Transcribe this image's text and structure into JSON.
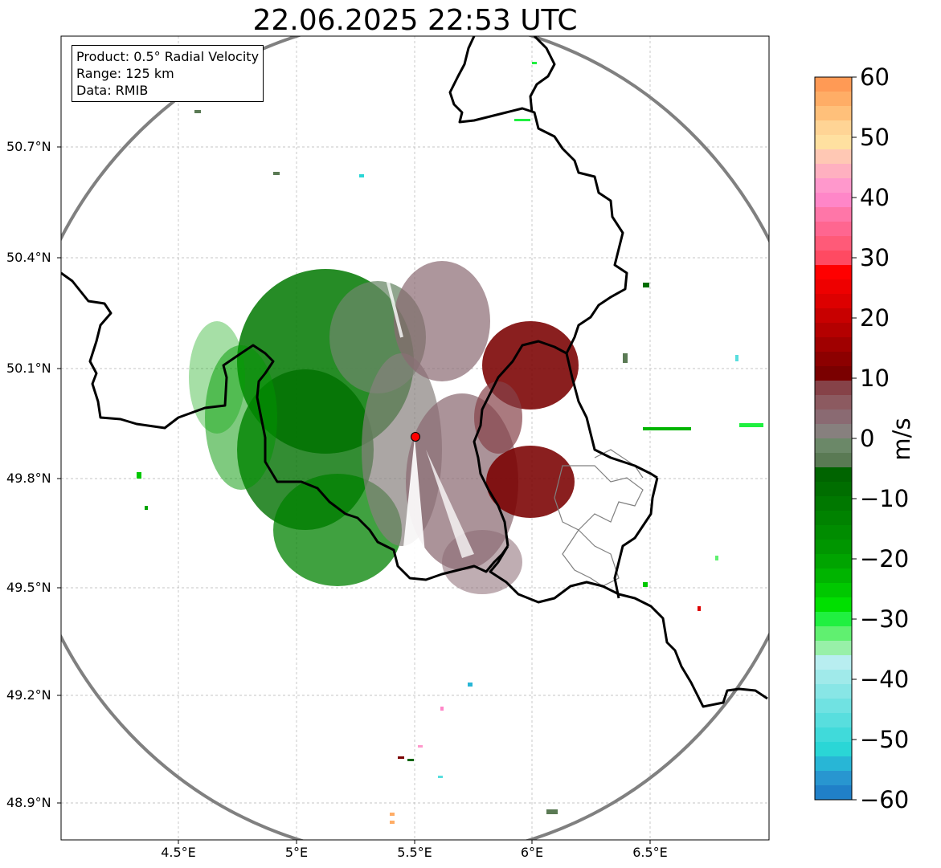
{
  "title": "22.06.2025 22:53 UTC",
  "info_box": {
    "product": "Product: 0.5° Radial Velocity",
    "range": "Range: 125 km",
    "source": "Data: RMIB"
  },
  "axes": {
    "lon_ticks": [
      "4.5°E",
      "5°E",
      "5.5°E",
      "6°E",
      "6.5°E"
    ],
    "lat_ticks": [
      "50.7°N",
      "50.4°N",
      "50.1°N",
      "49.8°N",
      "49.5°N",
      "49.2°N",
      "48.9°N"
    ]
  },
  "radar_site": {
    "lon": 5.5,
    "lat": 49.91,
    "marker_color": "#ff0000"
  },
  "colorbar": {
    "label": "m/s",
    "ticks": [
      "60",
      "50",
      "40",
      "30",
      "20",
      "10",
      "0",
      "−10",
      "−20",
      "−30",
      "−40",
      "−50",
      "−60"
    ],
    "min": -60,
    "max": 60,
    "colors_top_to_bottom": [
      "#ff9a55",
      "#ffad66",
      "#ffc07a",
      "#ffd495",
      "#ffe0a0",
      "#ffc8b4",
      "#ffb0c0",
      "#ff98cc",
      "#ff86c8",
      "#ff76a8",
      "#ff6690",
      "#ff5a78",
      "#ff4a62",
      "#ff0000",
      "#ee0000",
      "#dd0000",
      "#c80000",
      "#b40000",
      "#a00000",
      "#8c0000",
      "#7a0000",
      "#864248",
      "#8c5a60",
      "#8a6a72",
      "#87807e",
      "#6b8868",
      "#5a7a54",
      "#006400",
      "#006e00",
      "#007800",
      "#008200",
      "#008c00",
      "#009600",
      "#00a400",
      "#00b400",
      "#00c800",
      "#00e000",
      "#20f040",
      "#60f070",
      "#98f0a8",
      "#b8eef0",
      "#a0eaea",
      "#88e6e6",
      "#70e2e2",
      "#58dede",
      "#40dada",
      "#2ad6d6",
      "#28b6d6",
      "#2896d0",
      "#2080c8"
    ]
  }
}
